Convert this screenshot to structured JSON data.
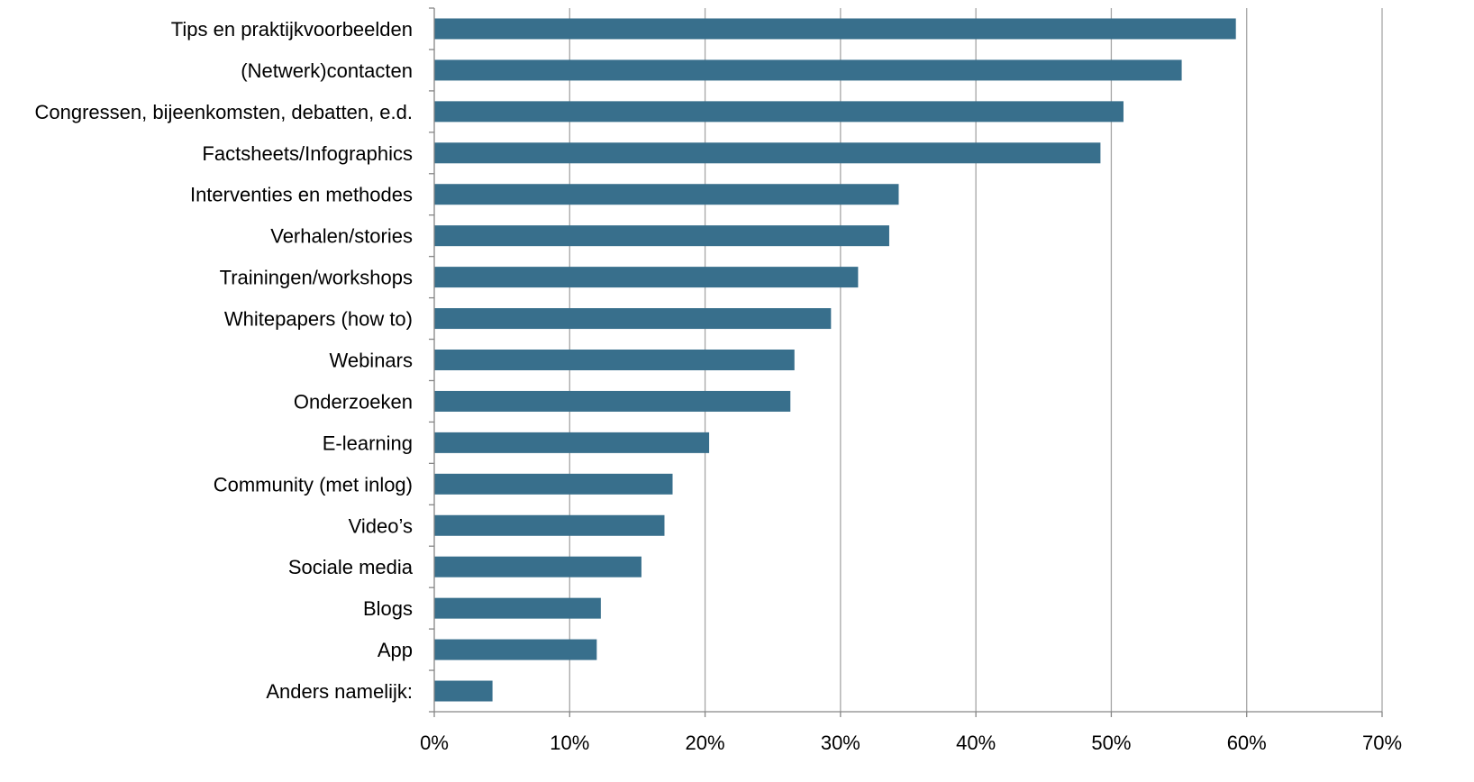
{
  "chart_data": {
    "type": "bar",
    "orientation": "horizontal",
    "categories": [
      "Tips en praktijkvoorbeelden",
      "(Netwerk)contacten",
      "Congressen, bijeenkomsten, debatten, e.d.",
      "Factsheets/Infographics",
      "Interventies en methodes",
      "Verhalen/stories",
      "Trainingen/workshops",
      "Whitepapers (how to)",
      "Webinars",
      "Onderzoeken",
      "E-learning",
      "Community (met inlog)",
      "Video’s",
      "Sociale media",
      "Blogs",
      "App",
      "Anders namelijk:"
    ],
    "values": [
      59.2,
      55.2,
      50.9,
      49.2,
      34.3,
      33.6,
      31.3,
      29.3,
      26.6,
      26.3,
      20.3,
      17.6,
      17.0,
      15.3,
      12.3,
      12.0,
      4.3
    ],
    "xlim": [
      0,
      70
    ],
    "xticks": [
      0,
      10,
      20,
      30,
      40,
      50,
      60,
      70
    ],
    "xtick_labels": [
      "0%",
      "10%",
      "20%",
      "30%",
      "40%",
      "50%",
      "60%",
      "70%"
    ],
    "grid": "vertical",
    "legend": "none",
    "title": "",
    "xlabel": "",
    "ylabel": "",
    "colors": {
      "bar": "#386f8c",
      "grid": "#a6a6a6",
      "axis": "#868686"
    }
  }
}
